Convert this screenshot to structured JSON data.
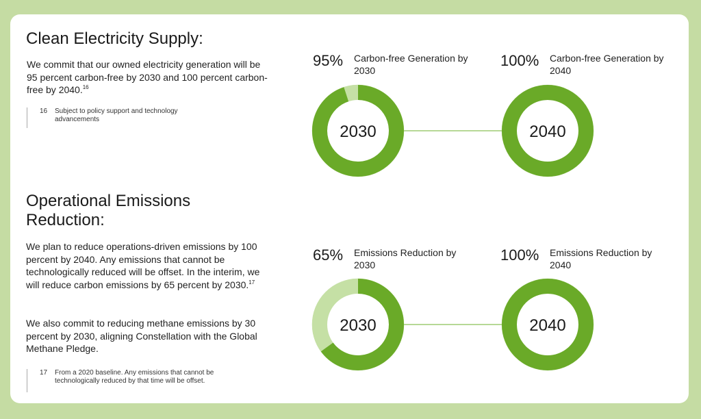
{
  "sections": [
    {
      "heading": "Clean Electricity Supply:",
      "body": "We commit that our owned electricity generation will be 95 percent carbon-free by 2030 and 100 percent carbon-free by 2040.",
      "body_sup": "16",
      "footnote": {
        "number": "16",
        "text": "Subject to policy support and technology advancements"
      }
    },
    {
      "heading": "Operational Emissions Reduction:",
      "body": "We plan to reduce operations-driven emissions by 100 percent by 2040. Any emissions that cannot be technologically reduced will be offset. In the interim, we will reduce carbon emissions by 65 percent by 2030.",
      "body_sup": "17",
      "body2": "We also commit to reducing methane emissions by 30 percent by 2030, aligning Constellation with the Global Methane Pledge.",
      "footnote": {
        "number": "17",
        "text": "From a 2020 baseline. Any emissions that cannot be technologically reduced by that time will be offset."
      }
    }
  ],
  "colors": {
    "background": "#c5dca3",
    "ring_fill": "#6aaa28",
    "ring_remainder": "#c5e0a5",
    "connector": "#b6d896"
  },
  "chart_data": [
    {
      "type": "pie",
      "metrics": [
        {
          "value": 95,
          "value_label": "95%",
          "label": "Carbon-free Generation by 2030",
          "center_label": "2030"
        },
        {
          "value": 100,
          "value_label": "100%",
          "label": "Carbon-free Generation by 2040",
          "center_label": "2040"
        }
      ]
    },
    {
      "type": "pie",
      "metrics": [
        {
          "value": 65,
          "value_label": "65%",
          "label": "Emissions Reduction by 2030",
          "center_label": "2030"
        },
        {
          "value": 100,
          "value_label": "100%",
          "label": "Emissions Reduction by 2040",
          "center_label": "2040"
        }
      ]
    }
  ]
}
